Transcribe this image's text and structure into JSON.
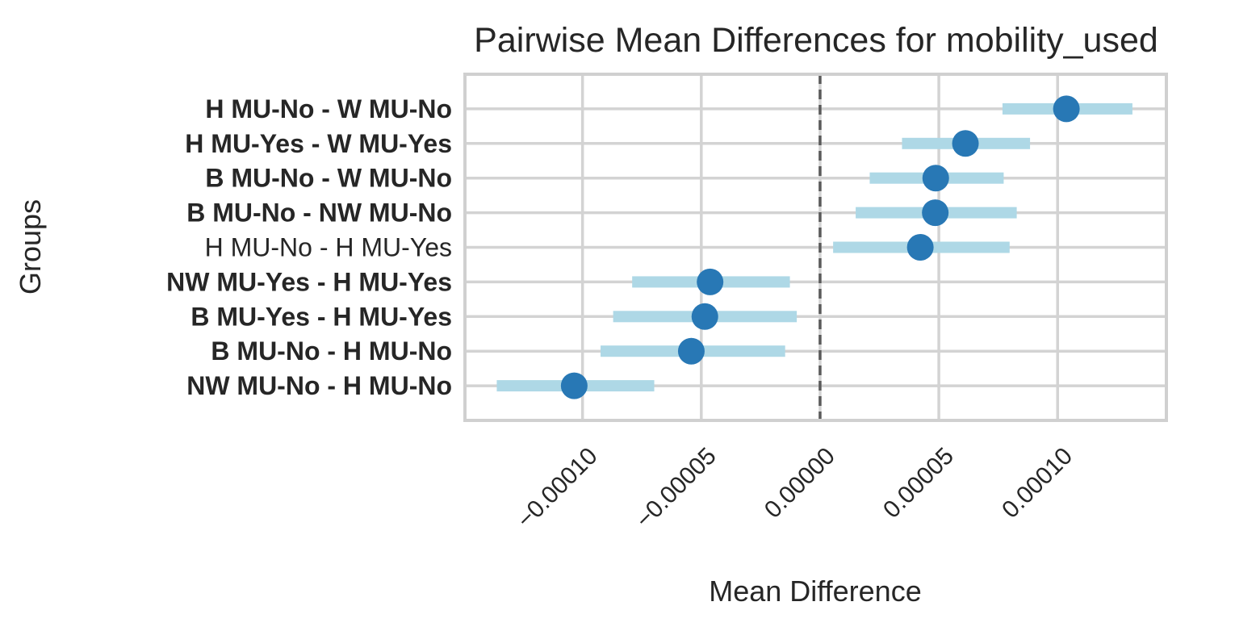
{
  "chart_data": {
    "type": "scatter",
    "title": "Pairwise Mean Differences for mobility_used",
    "xlabel": "Mean Difference",
    "ylabel": "Groups",
    "grid": true,
    "legend": false,
    "xlim": [
      -0.0001495,
      0.0001458
    ],
    "x_ticks": {
      "values": [
        -0.0001,
        -5e-05,
        0.0,
        5e-05,
        0.0001
      ],
      "labels": [
        "−0.00010",
        "−0.00005",
        "0.00000",
        "0.00005",
        "0.00010"
      ]
    },
    "zero_line": {
      "value": 0.0,
      "style": "dashed"
    },
    "rows": [
      {
        "label": "H MU-No - W MU-No",
        "bold": true,
        "mean": 0.0001037,
        "ci_low": 7.68e-05,
        "ci_high": 0.0001315
      },
      {
        "label": "H MU-Yes - W MU-Yes",
        "bold": true,
        "mean": 6.12e-05,
        "ci_low": 3.45e-05,
        "ci_high": 8.84e-05
      },
      {
        "label": "B MU-No - W MU-No",
        "bold": true,
        "mean": 4.87e-05,
        "ci_low": 2.09e-05,
        "ci_high": 7.73e-05
      },
      {
        "label": "B MU-No - NW MU-No",
        "bold": true,
        "mean": 4.85e-05,
        "ci_low": 1.5e-05,
        "ci_high": 8.28e-05
      },
      {
        "label": "H MU-No - H MU-Yes",
        "bold": false,
        "mean": 4.22e-05,
        "ci_low": 5.5e-06,
        "ci_high": 7.98e-05
      },
      {
        "label": "NW MU-Yes - H MU-Yes",
        "bold": true,
        "mean": -4.63e-05,
        "ci_low": -7.91e-05,
        "ci_high": -1.27e-05
      },
      {
        "label": "B MU-Yes - H MU-Yes",
        "bold": true,
        "mean": -4.85e-05,
        "ci_low": -8.71e-05,
        "ci_high": -9.8e-06
      },
      {
        "label": "B MU-No - H MU-No",
        "bold": true,
        "mean": -5.42e-05,
        "ci_low": -9.24e-05,
        "ci_high": -1.47e-05
      },
      {
        "label": "NW MU-No - H MU-No",
        "bold": true,
        "mean": -0.0001035,
        "ci_low": -0.0001361,
        "ci_high": -6.98e-05
      }
    ],
    "colors": {
      "point": "#2878b5",
      "interval": "#aed8e6",
      "grid": "#d3d3d3",
      "spine": "#d0d0d0",
      "zero_line": "#5a5a5a",
      "text": "#262626",
      "background": "#ffffff"
    }
  }
}
